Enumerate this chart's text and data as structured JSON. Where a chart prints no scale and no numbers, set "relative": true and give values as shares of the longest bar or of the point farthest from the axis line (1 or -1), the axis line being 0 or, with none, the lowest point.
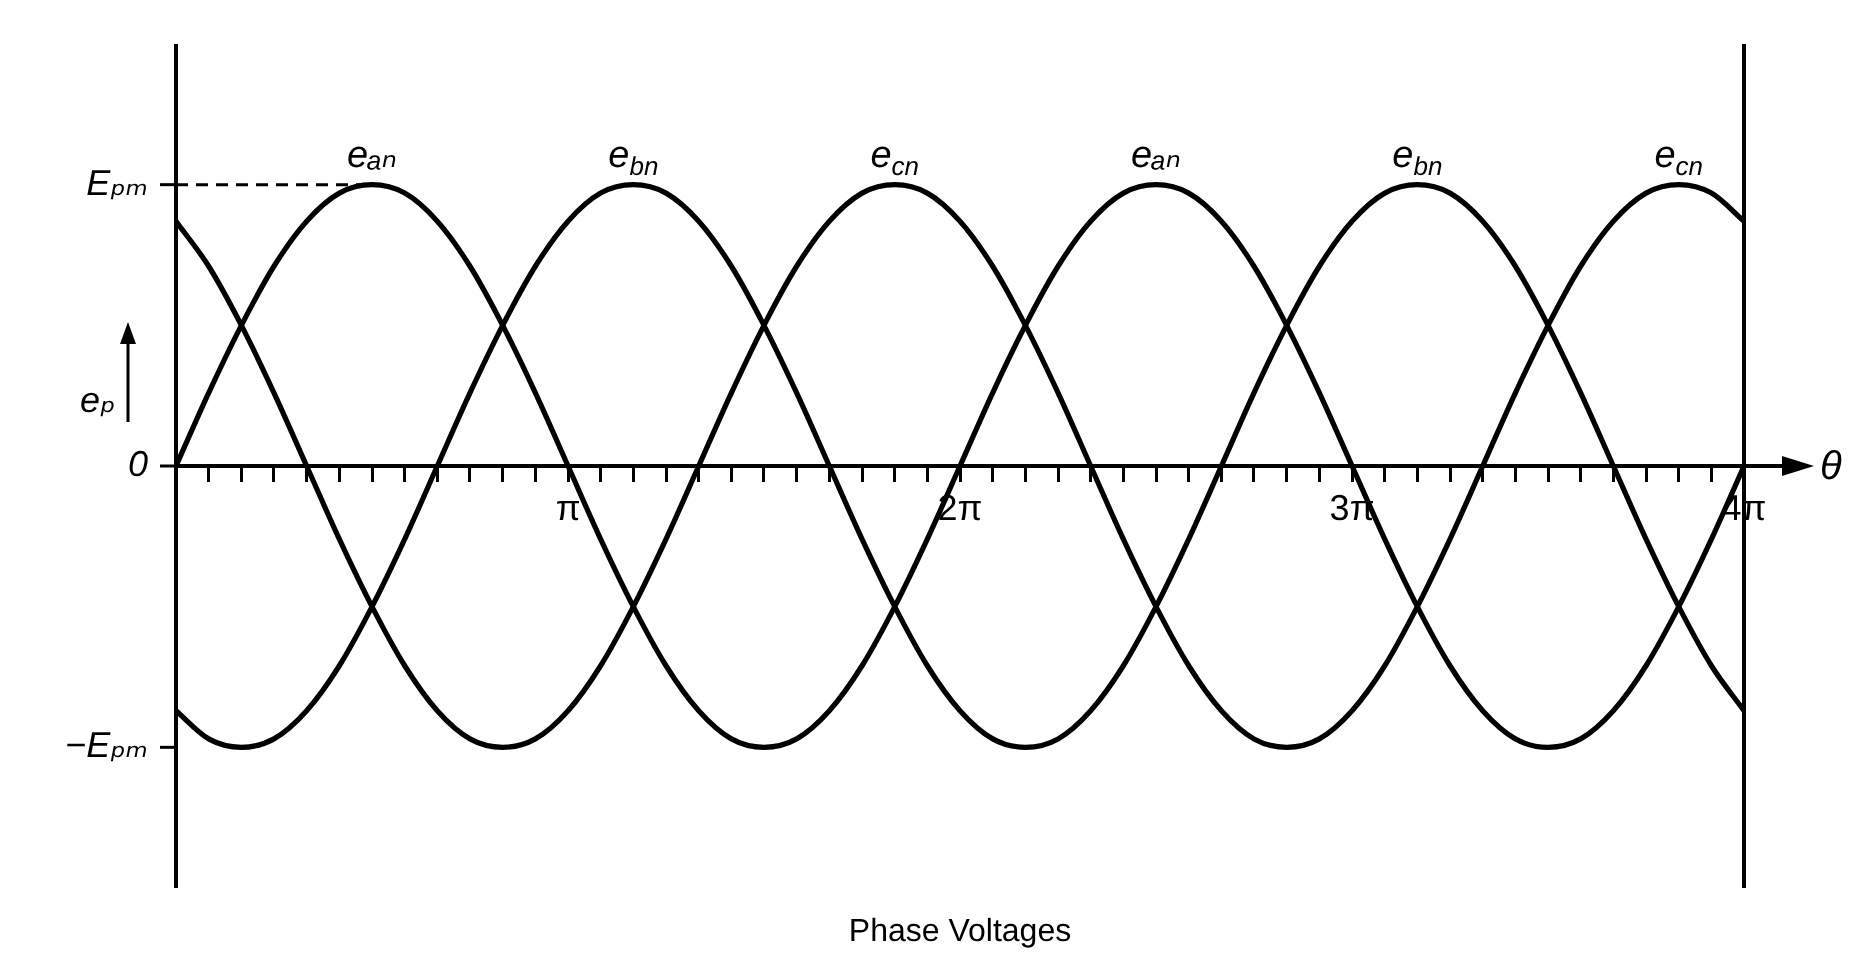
{
  "chart_data": {
    "type": "line",
    "title": "Phase Voltages",
    "xlabel": "θ",
    "ylabel": "eₚ",
    "legend": false,
    "grid": false,
    "marker": "none",
    "line_style": "solid",
    "relative": true,
    "annotations": [
      "0",
      "−Eₚₘ"
    ],
    "xlim": [
      0,
      12.566
    ],
    "xticks": [
      {
        "value": 0,
        "label": null
      },
      {
        "value": 0.262,
        "label": null
      },
      {
        "value": 0.524,
        "label": null
      },
      {
        "value": 0.785,
        "label": null
      },
      {
        "value": 1.047,
        "label": null
      },
      {
        "value": 1.309,
        "label": null
      },
      {
        "value": 1.571,
        "label": null
      },
      {
        "value": 1.833,
        "label": null
      },
      {
        "value": 2.094,
        "label": null
      },
      {
        "value": 2.356,
        "label": null
      },
      {
        "value": 2.618,
        "label": null
      },
      {
        "value": 2.88,
        "label": null
      },
      {
        "value": 3.142,
        "label": "π"
      },
      {
        "value": 3.403,
        "label": null
      },
      {
        "value": 3.665,
        "label": null
      },
      {
        "value": 3.927,
        "label": null
      },
      {
        "value": 4.189,
        "label": null
      },
      {
        "value": 4.451,
        "label": null
      },
      {
        "value": 4.712,
        "label": null
      },
      {
        "value": 4.974,
        "label": null
      },
      {
        "value": 5.236,
        "label": null
      },
      {
        "value": 5.498,
        "label": null
      },
      {
        "value": 5.76,
        "label": null
      },
      {
        "value": 6.021,
        "label": null
      },
      {
        "value": 6.283,
        "label": "2π"
      },
      {
        "value": 6.545,
        "label": null
      },
      {
        "value": 6.807,
        "label": null
      },
      {
        "value": 7.069,
        "label": null
      },
      {
        "value": 7.33,
        "label": null
      },
      {
        "value": 7.592,
        "label": null
      },
      {
        "value": 7.854,
        "label": null
      },
      {
        "value": 8.116,
        "label": null
      },
      {
        "value": 8.378,
        "label": null
      },
      {
        "value": 8.639,
        "label": null
      },
      {
        "value": 8.901,
        "label": null
      },
      {
        "value": 9.163,
        "label": null
      },
      {
        "value": 9.425,
        "label": "3π"
      },
      {
        "value": 9.687,
        "label": null
      },
      {
        "value": 9.948,
        "label": null
      },
      {
        "value": 10.21,
        "label": null
      },
      {
        "value": 10.472,
        "label": null
      },
      {
        "value": 10.734,
        "label": null
      },
      {
        "value": 10.996,
        "label": null
      },
      {
        "value": 11.257,
        "label": null
      },
      {
        "value": 11.519,
        "label": null
      },
      {
        "value": 11.781,
        "label": null
      },
      {
        "value": 12.043,
        "label": null
      },
      {
        "value": 12.305,
        "label": null
      },
      {
        "value": 12.566,
        "label": "4π"
      }
    ],
    "ref_lines": [
      {
        "axis": "y",
        "value": 1,
        "line_style": "dashed",
        "color": "#000000",
        "label": "Eₚₘ"
      }
    ],
    "x": [
      0,
      0.262,
      0.524,
      0.785,
      1.047,
      1.309,
      1.571,
      1.833,
      2.094,
      2.356,
      2.618,
      2.88,
      3.142,
      3.403,
      3.665,
      3.927,
      4.189,
      4.451,
      4.712,
      4.974,
      5.236,
      5.498,
      5.76,
      6.021,
      6.283,
      6.545,
      6.807,
      7.069,
      7.33,
      7.592,
      7.854,
      8.116,
      8.378,
      8.639,
      8.901,
      9.163,
      9.425,
      9.687,
      9.948,
      10.21,
      10.472,
      10.734,
      10.996,
      11.257,
      11.519,
      11.781,
      12.043,
      12.305,
      12.566
    ],
    "series": [
      {
        "name": "eₐₙ",
        "color": "#000000",
        "values": [
          0,
          0.26,
          0.5,
          0.71,
          0.87,
          0.97,
          1,
          0.97,
          0.87,
          0.71,
          0.5,
          0.26,
          0,
          -0.26,
          -0.5,
          -0.71,
          -0.87,
          -0.97,
          -1,
          -0.97,
          -0.87,
          -0.71,
          -0.5,
          -0.26,
          0,
          0.26,
          0.5,
          0.71,
          0.87,
          0.97,
          1,
          0.97,
          0.87,
          0.71,
          0.5,
          0.26,
          0,
          -0.26,
          -0.5,
          -0.71,
          -0.87,
          -0.97,
          -1,
          -0.97,
          -0.87,
          -0.71,
          -0.5,
          -0.26,
          0
        ]
      },
      {
        "name": "e$_{bn}$",
        "color": "#000000",
        "values": [
          -0.87,
          -0.97,
          -1,
          -0.97,
          -0.87,
          -0.71,
          -0.5,
          -0.26,
          0,
          0.26,
          0.5,
          0.71,
          0.87,
          0.97,
          1,
          0.97,
          0.87,
          0.71,
          0.5,
          0.26,
          0,
          -0.26,
          -0.5,
          -0.71,
          -0.87,
          -0.97,
          -1,
          -0.97,
          -0.87,
          -0.71,
          -0.5,
          -0.26,
          0,
          0.26,
          0.5,
          0.71,
          0.87,
          0.97,
          1,
          0.97,
          0.87,
          0.71,
          0.5,
          0.26,
          0,
          -0.26,
          -0.5,
          -0.71,
          -0.87
        ]
      },
      {
        "name": "e$_{cn}$",
        "color": "#000000",
        "values": [
          0.87,
          0.71,
          0.5,
          0.26,
          0,
          -0.26,
          -0.5,
          -0.71,
          -0.87,
          -0.97,
          -1,
          -0.97,
          -0.87,
          -0.71,
          -0.5,
          -0.26,
          0,
          0.26,
          0.5,
          0.71,
          0.87,
          0.97,
          1,
          0.97,
          0.87,
          0.71,
          0.5,
          0.26,
          0,
          -0.26,
          -0.5,
          -0.71,
          -0.87,
          -0.97,
          -1,
          -0.97,
          -0.87,
          -0.71,
          -0.5,
          -0.26,
          0,
          0.26,
          0.5,
          0.71,
          0.87,
          0.97,
          1,
          0.97,
          0.87
        ]
      }
    ]
  }
}
